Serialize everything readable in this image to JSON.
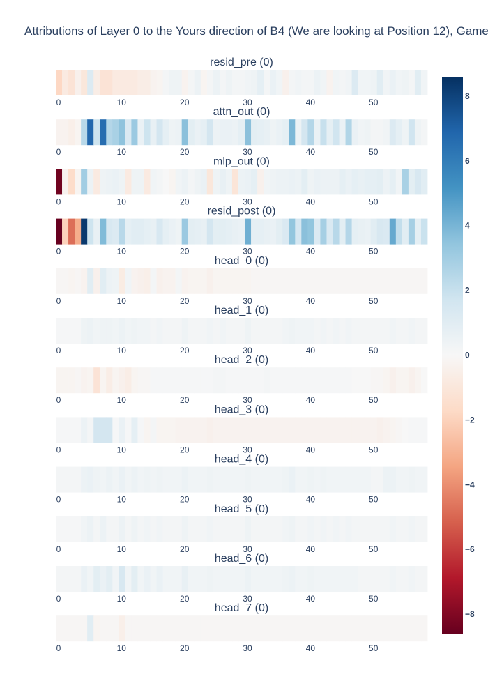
{
  "chart_data": {
    "type": "heatmap",
    "title": "Attributions of Layer 0 to the Yours direction of B4 (We are looking at Position 12), Game",
    "x_ticks": [
      "0",
      "10",
      "20",
      "30",
      "40",
      "50"
    ],
    "xlim": [
      0,
      58
    ],
    "colorscale": "RdBu",
    "zlim": [
      -8.6,
      8.6
    ],
    "colorbar_ticks": [
      {
        "value": 8,
        "label": "8"
      },
      {
        "value": 6,
        "label": "6"
      },
      {
        "value": 4,
        "label": "4"
      },
      {
        "value": 2,
        "label": "2"
      },
      {
        "value": 0,
        "label": "0"
      },
      {
        "value": -2,
        "label": "−2"
      },
      {
        "value": -4,
        "label": "−4"
      },
      {
        "value": -6,
        "label": "−6"
      },
      {
        "value": -8,
        "label": "−8"
      }
    ],
    "panels": [
      {
        "title": "resid_pre (0)",
        "values": [
          -1.8,
          -0.8,
          -1.2,
          -0.4,
          -1.0,
          1.2,
          -0.6,
          -1.2,
          -1.2,
          -0.8,
          -0.8,
          -0.8,
          -0.8,
          -0.6,
          -0.6,
          -0.3,
          -0.2,
          0.2,
          0.4,
          0.4,
          -0.3,
          0.2,
          0.5,
          -0.2,
          0.2,
          0.5,
          0.2,
          0.4,
          0.2,
          0.2,
          0.3,
          0.4,
          0.8,
          0.2,
          0.6,
          0.3,
          -0.4,
          0.2,
          0.3,
          0.2,
          0.2,
          0.5,
          0.3,
          -0.3,
          0.3,
          0.2,
          0.3,
          1.2,
          0.3,
          0.3,
          0.4,
          1.0,
          0.3,
          0.6,
          0.3,
          0.4,
          0.2,
          1.0,
          0.3
        ]
      },
      {
        "title": "attn_out (0)",
        "values": [
          -0.3,
          -0.3,
          -0.5,
          -0.2,
          2.4,
          6.8,
          1.8,
          6.6,
          2.5,
          2.8,
          3.5,
          1.3,
          3.2,
          0.6,
          1.8,
          0.7,
          1.6,
          0.8,
          0.4,
          0.5,
          3.6,
          0.9,
          0.6,
          0.8,
          1.6,
          0.5,
          0.6,
          0.6,
          0.5,
          0.8,
          3.6,
          0.9,
          0.8,
          0.7,
          0.4,
          0.6,
          0.8,
          3.9,
          0.5,
          1.6,
          2.5,
          0.6,
          2.0,
          0.8,
          1.7,
          0.6,
          2.6,
          0.6,
          0.3,
          0.4,
          0.2,
          0.2,
          0.3,
          1.2,
          0.8,
          0.4,
          1.7,
          0.4,
          0.2
        ]
      },
      {
        "title": "mlp_out (0)",
        "values": [
          -8.4,
          -0.3,
          -1.6,
          -0.2,
          3.0,
          0.5,
          -0.8,
          0.4,
          0.5,
          0.6,
          0.4,
          -0.8,
          0.4,
          0.4,
          -0.8,
          0.3,
          0.2,
          0.0,
          -0.2,
          0.3,
          0.5,
          0.2,
          0.4,
          0.6,
          -1.0,
          0.4,
          0.7,
          0.4,
          -1.1,
          0.5,
          0.6,
          0.8,
          -0.4,
          0.3,
          0.4,
          0.5,
          0.5,
          0.6,
          0.5,
          0.9,
          0.4,
          0.6,
          0.5,
          0.5,
          0.5,
          0.8,
          0.6,
          0.8,
          0.7,
          0.8,
          0.8,
          0.9,
          0.5,
          0.8,
          0.3,
          2.8,
          0.9,
          1.4,
          1.0
        ]
      },
      {
        "title": "resid_post (0)",
        "values": [
          -8.6,
          -2.0,
          -4.8,
          -3.2,
          8.3,
          1.8,
          0.7,
          3.8,
          1.4,
          1.2,
          2.4,
          0.8,
          1.0,
          1.0,
          0.8,
          0.7,
          1.4,
          0.8,
          0.6,
          0.4,
          3.2,
          0.9,
          0.8,
          0.7,
          1.6,
          0.9,
          0.9,
          0.8,
          0.7,
          0.6,
          4.2,
          0.8,
          0.8,
          0.7,
          0.6,
          0.9,
          1.3,
          3.4,
          1.5,
          3.6,
          3.4,
          1.2,
          2.9,
          1.3,
          2.4,
          0.9,
          2.5,
          0.8,
          0.7,
          0.6,
          1.0,
          1.4,
          1.3,
          4.4,
          2.1,
          1.0,
          2.9,
          0.8,
          1.9
        ]
      },
      {
        "title": "head_0 (0)",
        "values": [
          -0.1,
          -0.1,
          -0.2,
          -0.1,
          -0.3,
          1.0,
          -0.4,
          1.0,
          0.5,
          0.4,
          -0.7,
          0.3,
          -0.3,
          -0.4,
          -0.5,
          0.2,
          -0.4,
          -0.3,
          -0.3,
          0.2,
          -0.3,
          -0.2,
          -0.2,
          -0.2,
          -0.4,
          -0.2,
          -0.2,
          -0.2,
          -0.2,
          -0.2,
          -0.2,
          -0.1,
          -0.1,
          -0.1,
          -0.1,
          -0.1,
          -0.1,
          -0.1,
          -0.1,
          -0.1,
          -0.1,
          -0.1,
          -0.1,
          -0.1,
          -0.1,
          -0.1,
          -0.1,
          -0.1,
          -0.1,
          -0.1,
          -0.1,
          -0.1,
          -0.1,
          -0.1,
          -0.1,
          -0.1,
          -0.1,
          -0.1,
          -0.1
        ]
      },
      {
        "title": "head_1 (0)",
        "values": [
          0.1,
          0.1,
          0.1,
          0.1,
          0.4,
          0.5,
          0.3,
          0.4,
          0.4,
          0.3,
          0.5,
          0.3,
          0.4,
          0.3,
          0.3,
          0.2,
          0.3,
          0.2,
          0.2,
          0.2,
          0.4,
          0.2,
          0.2,
          0.2,
          0.3,
          0.2,
          0.3,
          0.2,
          0.2,
          0.2,
          0.4,
          0.2,
          0.2,
          0.2,
          0.2,
          0.2,
          0.3,
          0.4,
          0.3,
          0.3,
          0.3,
          0.2,
          0.3,
          0.2,
          0.3,
          0.2,
          0.3,
          0.2,
          0.2,
          0.2,
          0.2,
          0.2,
          0.2,
          0.3,
          0.2,
          0.2,
          0.3,
          0.2,
          0.2
        ]
      },
      {
        "title": "head_2 (0)",
        "values": [
          -0.2,
          -0.2,
          -0.2,
          -0.1,
          -0.3,
          -0.2,
          -1.2,
          -0.2,
          -0.6,
          -0.2,
          -0.4,
          -0.6,
          -0.2,
          -0.1,
          -0.1,
          0.1,
          0.1,
          0.1,
          0.1,
          0.1,
          0.1,
          0.1,
          0.1,
          0.1,
          0.1,
          0.2,
          0.2,
          0.1,
          0.1,
          0.1,
          0.1,
          0.1,
          0.1,
          0.2,
          0.1,
          0.1,
          0.1,
          0.1,
          0.1,
          0.1,
          0.1,
          0.1,
          0.1,
          0.1,
          0.1,
          0.1,
          0.1,
          0.0,
          0.0,
          0.0,
          -0.1,
          -0.1,
          -0.2,
          -0.4,
          -0.2,
          -0.2,
          -0.4,
          -0.2,
          0.0
        ]
      },
      {
        "title": "head_3 (0)",
        "values": [
          0.1,
          0.1,
          0.1,
          0.1,
          0.5,
          0.2,
          1.6,
          1.6,
          1.6,
          0.1,
          0.6,
          0.1,
          0.8,
          0.1,
          -0.2,
          0.2,
          -0.2,
          -0.2,
          -0.2,
          -0.3,
          -0.3,
          -0.3,
          -0.3,
          -0.3,
          -0.4,
          -0.3,
          -0.3,
          -0.3,
          -0.3,
          -0.3,
          -0.3,
          -0.3,
          -0.3,
          -0.3,
          -0.3,
          -0.3,
          -0.3,
          -0.3,
          -0.3,
          -0.3,
          -0.3,
          -0.3,
          -0.3,
          -0.3,
          -0.3,
          -0.3,
          -0.3,
          -0.3,
          -0.3,
          -0.3,
          -0.3,
          -0.4,
          -0.3,
          -0.2,
          -0.1,
          0.0,
          0.1,
          0.1,
          0.1
        ]
      },
      {
        "title": "head_4 (0)",
        "values": [
          0.2,
          0.2,
          0.2,
          0.2,
          0.5,
          0.6,
          0.4,
          0.3,
          0.5,
          0.3,
          0.6,
          0.3,
          0.5,
          0.3,
          0.4,
          0.3,
          0.4,
          0.3,
          0.3,
          0.3,
          0.5,
          0.3,
          0.3,
          0.3,
          0.4,
          0.3,
          0.3,
          0.3,
          0.3,
          0.3,
          0.4,
          0.3,
          0.3,
          0.3,
          0.3,
          0.3,
          0.4,
          0.6,
          0.3,
          0.3,
          0.4,
          0.3,
          0.4,
          0.3,
          0.3,
          0.3,
          0.3,
          0.3,
          0.3,
          0.3,
          0.2,
          0.2,
          0.5,
          0.5,
          0.3,
          0.3,
          0.4,
          0.3,
          0.3
        ]
      },
      {
        "title": "head_5 (0)",
        "values": [
          0.1,
          0.1,
          0.1,
          0.1,
          0.3,
          0.5,
          0.2,
          0.5,
          0.2,
          0.2,
          0.5,
          0.2,
          0.4,
          0.2,
          0.3,
          0.2,
          0.3,
          0.2,
          0.2,
          0.2,
          0.4,
          0.2,
          0.2,
          0.2,
          0.3,
          0.2,
          0.2,
          0.2,
          0.2,
          0.2,
          0.4,
          0.2,
          0.2,
          0.2,
          0.2,
          0.2,
          0.3,
          0.4,
          0.2,
          0.2,
          0.3,
          0.2,
          0.3,
          0.2,
          0.3,
          0.2,
          0.3,
          0.2,
          0.2,
          0.2,
          0.2,
          0.2,
          0.2,
          0.3,
          0.2,
          0.2,
          0.3,
          0.2,
          0.2
        ]
      },
      {
        "title": "head_6 (0)",
        "values": [
          0.2,
          0.2,
          0.2,
          0.2,
          0.6,
          0.3,
          0.9,
          0.6,
          0.9,
          0.3,
          1.4,
          0.3,
          0.9,
          0.3,
          0.6,
          0.3,
          0.6,
          0.3,
          0.3,
          0.3,
          0.7,
          0.3,
          0.3,
          0.3,
          0.4,
          0.3,
          0.3,
          0.3,
          0.3,
          0.3,
          0.5,
          0.3,
          0.3,
          0.3,
          0.3,
          0.3,
          0.4,
          0.5,
          0.3,
          0.3,
          0.4,
          0.3,
          0.3,
          0.3,
          0.3,
          0.3,
          0.3,
          0.3,
          0.2,
          0.2,
          0.2,
          0.2,
          0.2,
          0.3,
          0.2,
          0.2,
          0.3,
          0.2,
          0.2
        ]
      },
      {
        "title": "head_7 (0)",
        "values": [
          -0.1,
          -0.1,
          -0.1,
          -0.1,
          -0.1,
          1.0,
          -0.2,
          -0.1,
          -0.1,
          -0.1,
          -0.5,
          -0.1,
          -0.1,
          -0.1,
          -0.1,
          -0.1,
          -0.1,
          -0.1,
          -0.1,
          -0.1,
          -0.1,
          -0.1,
          -0.1,
          -0.1,
          -0.1,
          -0.1,
          -0.1,
          -0.1,
          -0.1,
          -0.1,
          -0.1,
          -0.1,
          -0.1,
          -0.1,
          -0.1,
          -0.1,
          -0.1,
          -0.1,
          -0.1,
          -0.1,
          -0.1,
          -0.1,
          -0.1,
          -0.1,
          -0.1,
          -0.1,
          -0.1,
          -0.1,
          -0.1,
          -0.1,
          -0.1,
          -0.1,
          -0.1,
          -0.1,
          -0.1,
          -0.1,
          -0.1,
          -0.1,
          -0.1
        ]
      }
    ]
  }
}
